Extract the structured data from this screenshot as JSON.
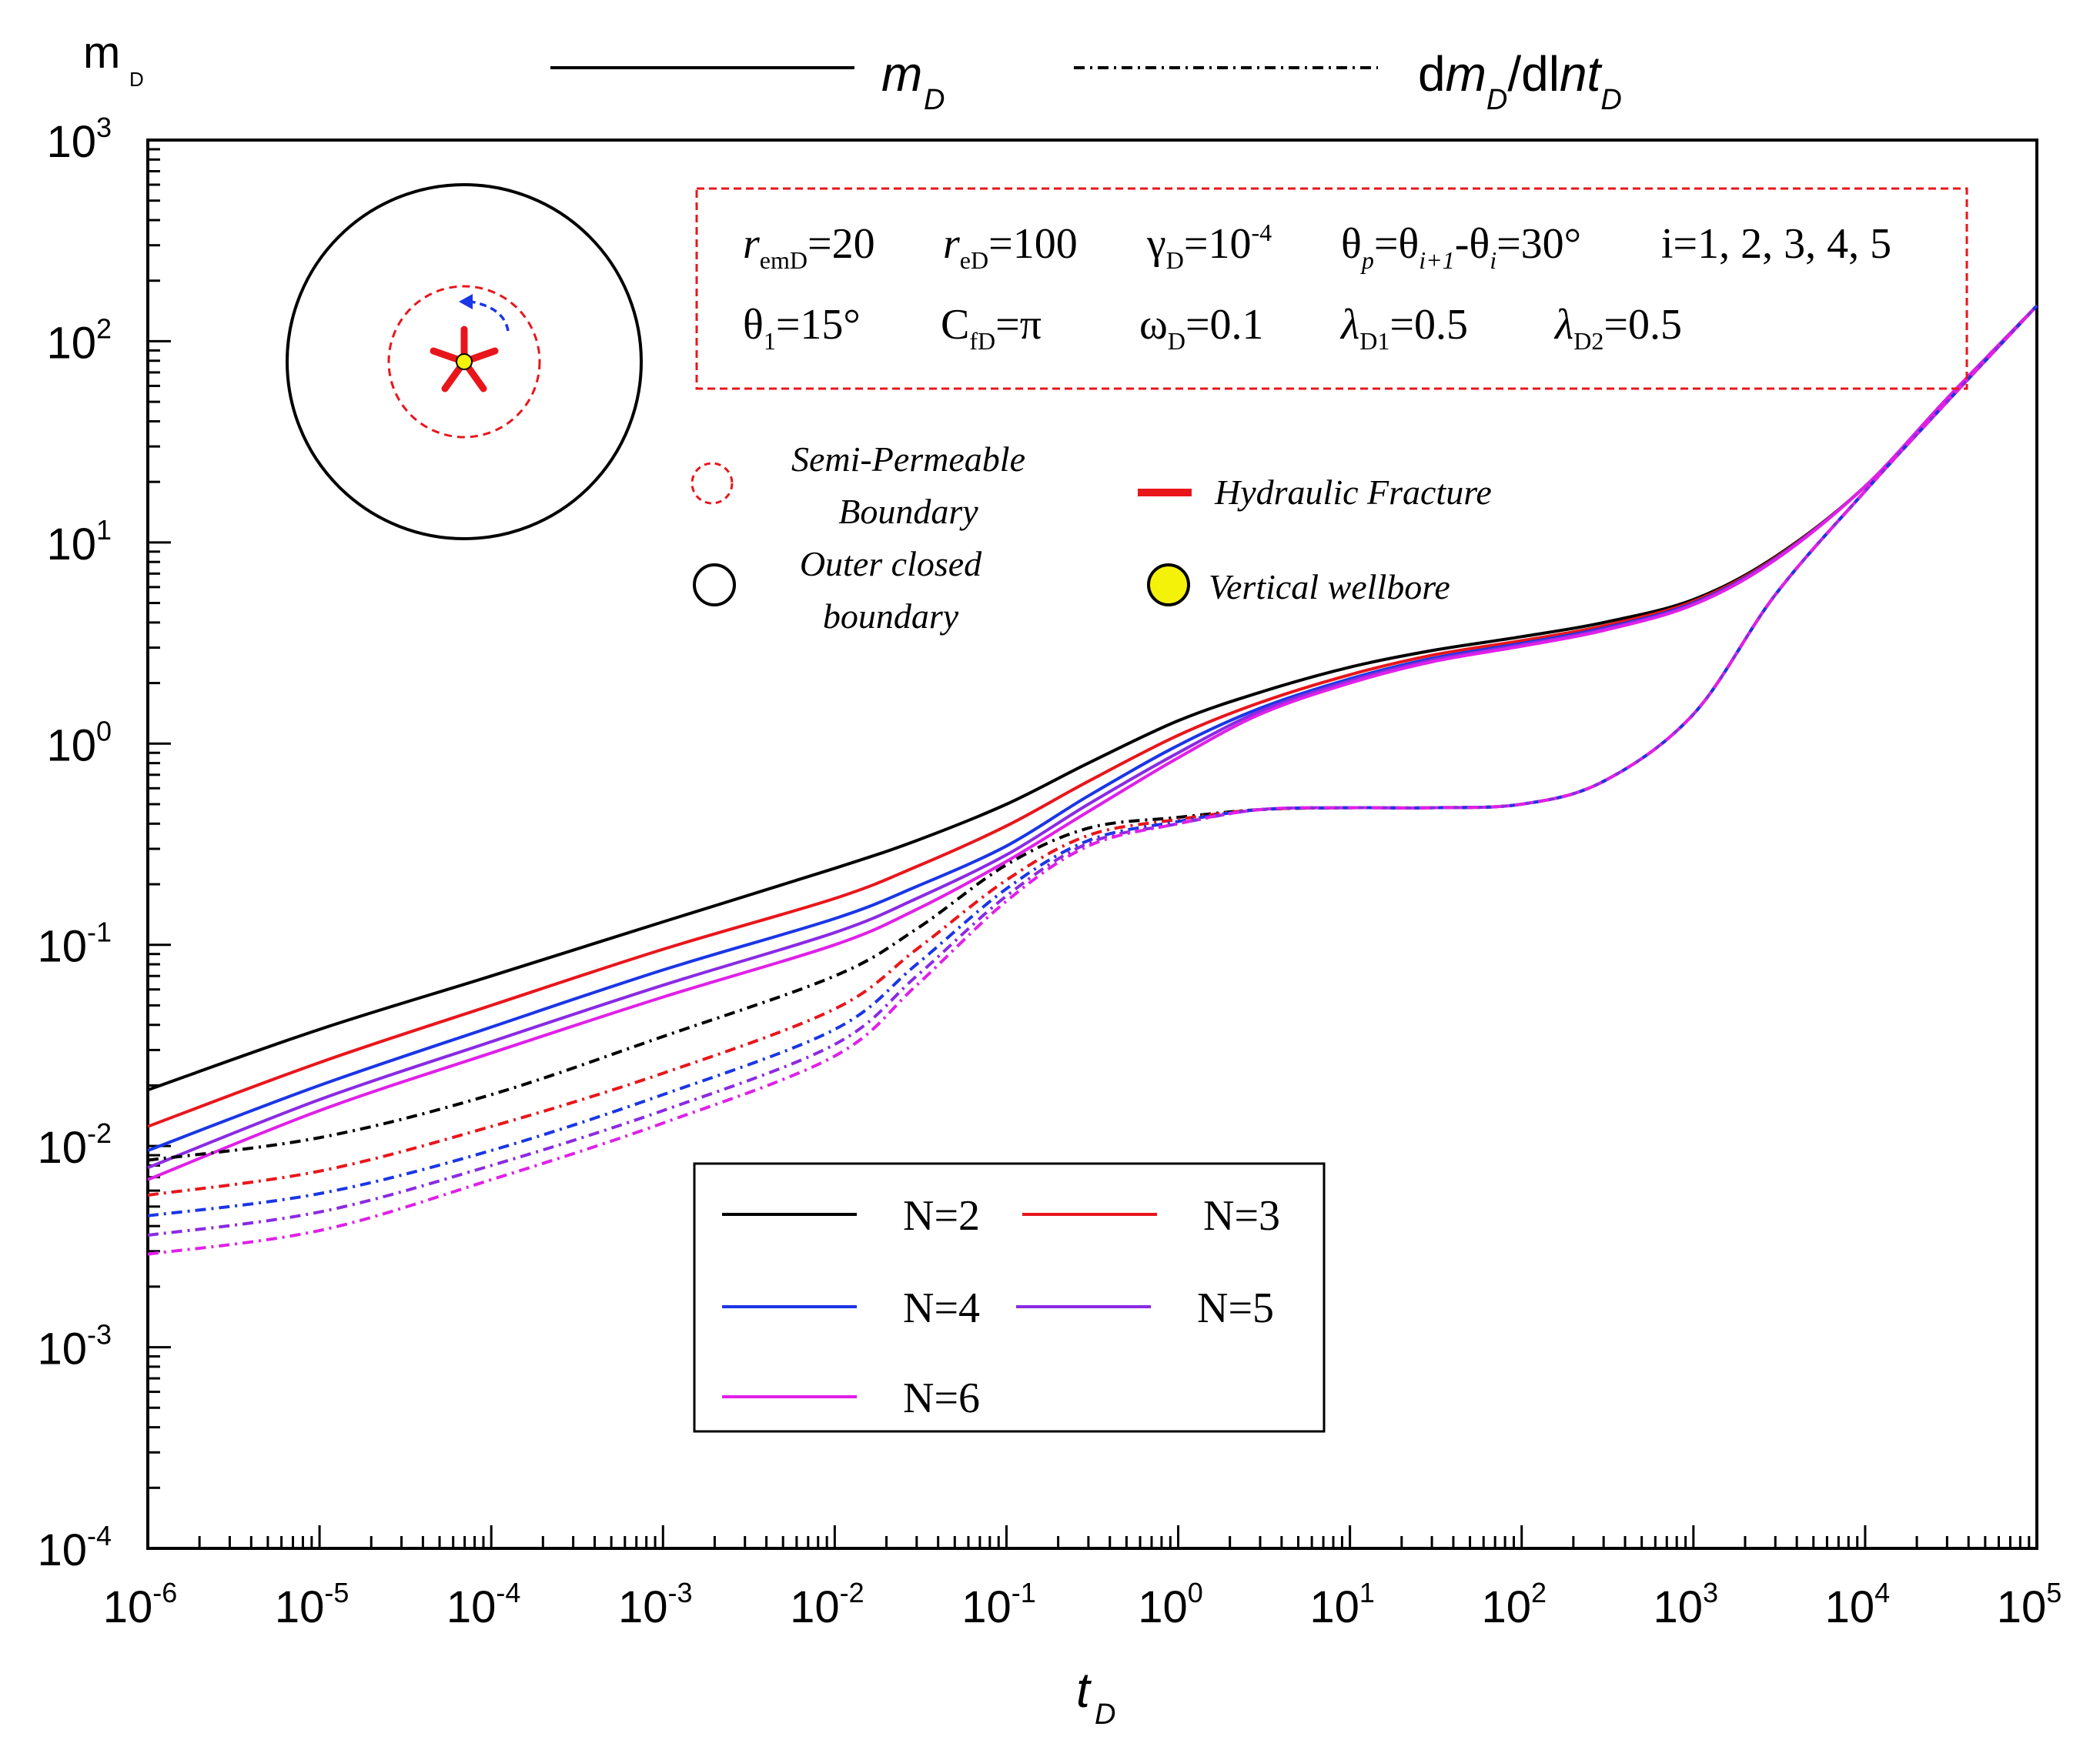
{
  "colors": {
    "axis": "#000000",
    "annot_box": "#e8161b",
    "fracture": "#e8161b",
    "wellbore": "#f5f20a",
    "arrow": "#1a36e6"
  },
  "labels": {
    "ylabel_main": "m",
    "ylabel_sub": "D",
    "xlabel_main": "t",
    "xlabel_sub": "D"
  },
  "style_legend": {
    "solid_main": "m",
    "solid_sub": "D",
    "dash_d": "d",
    "dash_m": "m",
    "dash_sub1": "D",
    "dash_dl": "/dl",
    "dash_nt": "nt",
    "dash_sub2": "D"
  },
  "params": {
    "r_em_main": "r",
    "r_em_sub": "emD",
    "r_em_val": "=20",
    "r_e_main": "r",
    "r_e_sub": "eD",
    "r_e_val": "=100",
    "gamma_main": "γ",
    "gamma_sub": "D",
    "gamma_val": "=10",
    "gamma_exp": "-4",
    "theta_p_main": "θ",
    "theta_p_sub": "p",
    "theta_p_eq": "=θ",
    "theta_p_sub2": "i+1",
    "theta_p_minus": "-θ",
    "theta_p_sub3": "i",
    "theta_p_val": "=30°",
    "i_text": "i=1, 2, 3, 4, 5",
    "theta1_main": "θ",
    "theta1_sub": "1",
    "theta1_val": "=15°",
    "cfd_main": "C",
    "cfd_sub": "fD",
    "cfd_val": "=π",
    "omega_main": "ω",
    "omega_sub": "D",
    "omega_val": "=0.1",
    "lambda1_main": "λ",
    "lambda1_sub": "D1",
    "lambda1_val": "=0.5",
    "lambda2_main": "λ",
    "lambda2_sub": "D2",
    "lambda2_val": "=0.5"
  },
  "schematic_legend": {
    "semi_line1": "Semi-Permeable",
    "semi_line2": "Boundary",
    "outer_line1": "Outer closed",
    "outer_line2": "boundary",
    "fracture": "Hydraulic Fracture",
    "wellbore": "Vertical wellbore"
  },
  "chart_data": {
    "type": "line",
    "x_scale": "log",
    "y_scale": "log",
    "xlim": [
      1e-06,
      100000.0
    ],
    "ylim": [
      0.0001,
      1000.0
    ],
    "xticks": [
      {
        "base": "10",
        "exp": "-6",
        "value": 1e-06
      },
      {
        "base": "10",
        "exp": "-5",
        "value": 1e-05
      },
      {
        "base": "10",
        "exp": "-4",
        "value": 0.0001
      },
      {
        "base": "10",
        "exp": "-3",
        "value": 0.001
      },
      {
        "base": "10",
        "exp": "-2",
        "value": 0.01
      },
      {
        "base": "10",
        "exp": "-1",
        "value": 0.1
      },
      {
        "base": "10",
        "exp": "0",
        "value": 1
      },
      {
        "base": "10",
        "exp": "1",
        "value": 10
      },
      {
        "base": "10",
        "exp": "2",
        "value": 100
      },
      {
        "base": "10",
        "exp": "3",
        "value": 1000
      },
      {
        "base": "10",
        "exp": "4",
        "value": 10000
      },
      {
        "base": "10",
        "exp": "5",
        "value": 100000
      }
    ],
    "yticks": [
      {
        "base": "10",
        "exp": "-4",
        "value": 0.0001
      },
      {
        "base": "10",
        "exp": "-3",
        "value": 0.001
      },
      {
        "base": "10",
        "exp": "-2",
        "value": 0.01
      },
      {
        "base": "10",
        "exp": "-1",
        "value": 0.1
      },
      {
        "base": "10",
        "exp": "0",
        "value": 1
      },
      {
        "base": "10",
        "exp": "1",
        "value": 10
      },
      {
        "base": "10",
        "exp": "2",
        "value": 100
      },
      {
        "base": "10",
        "exp": "3",
        "value": 1000
      }
    ],
    "x": [
      1e-06,
      1e-05,
      0.0001,
      0.001,
      0.01,
      0.03,
      0.1,
      0.3,
      1,
      3,
      10,
      30,
      100,
      300,
      1000,
      3000,
      10000,
      30000,
      100000
    ],
    "series": [
      {
        "name": "N=2",
        "kind": "mD",
        "color": "#000000",
        "values": [
          0.019,
          0.038,
          0.07,
          0.13,
          0.24,
          0.33,
          0.5,
          0.8,
          1.3,
          1.8,
          2.4,
          2.9,
          3.4,
          4.0,
          5.2,
          8.5,
          19,
          52,
          150
        ]
      },
      {
        "name": "N=3",
        "kind": "mD",
        "color": "#e8161b",
        "values": [
          0.0125,
          0.026,
          0.05,
          0.095,
          0.17,
          0.245,
          0.39,
          0.65,
          1.1,
          1.6,
          2.2,
          2.75,
          3.25,
          3.85,
          5.1,
          8.4,
          19,
          52,
          150
        ]
      },
      {
        "name": "N=4",
        "kind": "mD",
        "color": "#1a36e6",
        "values": [
          0.0095,
          0.02,
          0.039,
          0.075,
          0.135,
          0.195,
          0.31,
          0.55,
          0.98,
          1.5,
          2.1,
          2.65,
          3.15,
          3.75,
          5.0,
          8.3,
          19,
          52,
          150
        ]
      },
      {
        "name": "N=5",
        "kind": "mD",
        "color": "#8a2be2",
        "values": [
          0.0078,
          0.017,
          0.033,
          0.063,
          0.115,
          0.17,
          0.28,
          0.5,
          0.9,
          1.45,
          2.05,
          2.6,
          3.1,
          3.7,
          4.95,
          8.25,
          19,
          52,
          150
        ]
      },
      {
        "name": "N=6",
        "kind": "mD",
        "color": "#e020e8",
        "values": [
          0.0068,
          0.015,
          0.029,
          0.055,
          0.1,
          0.15,
          0.26,
          0.46,
          0.85,
          1.4,
          2.0,
          2.55,
          3.05,
          3.65,
          4.9,
          8.2,
          19,
          52,
          150
        ]
      },
      {
        "name": "N=2",
        "kind": "dmD",
        "color": "#000000",
        "values": [
          0.0085,
          0.011,
          0.018,
          0.035,
          0.07,
          0.12,
          0.25,
          0.38,
          0.43,
          0.47,
          0.48,
          0.48,
          0.5,
          0.65,
          1.4,
          5.5,
          18,
          50,
          150
        ]
      },
      {
        "name": "N=3",
        "kind": "dmD",
        "color": "#e8161b",
        "values": [
          0.0057,
          0.0075,
          0.0125,
          0.023,
          0.048,
          0.095,
          0.21,
          0.35,
          0.42,
          0.47,
          0.48,
          0.48,
          0.5,
          0.65,
          1.4,
          5.5,
          18,
          50,
          150
        ]
      },
      {
        "name": "N=4",
        "kind": "dmD",
        "color": "#1a36e6",
        "values": [
          0.0045,
          0.0058,
          0.0095,
          0.018,
          0.038,
          0.08,
          0.19,
          0.33,
          0.41,
          0.47,
          0.48,
          0.48,
          0.5,
          0.65,
          1.4,
          5.5,
          18,
          50,
          150
        ]
      },
      {
        "name": "N=5",
        "kind": "dmD",
        "color": "#8a2be2",
        "values": [
          0.0036,
          0.0047,
          0.008,
          0.015,
          0.032,
          0.07,
          0.175,
          0.32,
          0.4,
          0.47,
          0.48,
          0.48,
          0.5,
          0.65,
          1.4,
          5.5,
          18,
          50,
          150
        ]
      },
      {
        "name": "N=6",
        "kind": "dmD",
        "color": "#e020e8",
        "values": [
          0.0029,
          0.0038,
          0.0068,
          0.013,
          0.028,
          0.063,
          0.165,
          0.31,
          0.4,
          0.47,
          0.48,
          0.48,
          0.5,
          0.65,
          1.4,
          5.5,
          18,
          50,
          150
        ]
      }
    ],
    "legend_placement": "bottom-center",
    "grid": false
  }
}
